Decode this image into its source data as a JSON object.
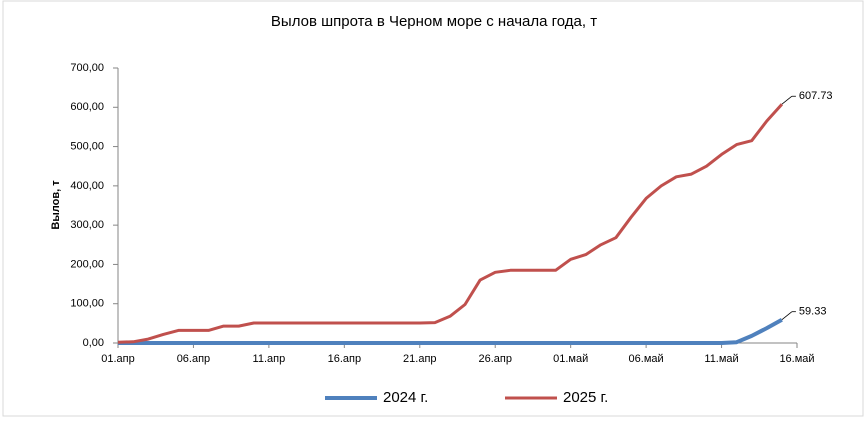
{
  "chart_data": {
    "type": "line",
    "title": "Вылов шпрота в Черном море с начала года, т",
    "y_label": "Вылов, т",
    "categories": [
      "01.апр",
      null,
      null,
      null,
      null,
      "06.апр",
      null,
      null,
      null,
      null,
      "11.апр",
      null,
      null,
      null,
      null,
      "16.апр",
      null,
      null,
      null,
      null,
      "21.апр",
      null,
      null,
      null,
      null,
      "26.апр",
      null,
      null,
      null,
      null,
      "01.май",
      null,
      null,
      null,
      null,
      "06.май",
      null,
      null,
      null,
      null,
      "11.май",
      null,
      null,
      null,
      null,
      "16.май"
    ],
    "series": [
      {
        "name": "2024 г.",
        "color": "#4f81bd",
        "width": 4,
        "values": [
          0,
          0,
          0,
          0,
          0,
          0,
          0,
          0,
          0,
          0,
          0,
          0,
          0,
          0,
          0,
          0,
          0,
          0,
          0,
          0,
          0,
          0,
          0,
          0,
          0,
          0,
          0,
          0,
          0,
          0,
          0,
          0,
          0,
          0,
          0,
          0,
          0,
          0,
          0,
          0,
          0,
          2,
          18,
          38,
          59.33,
          null
        ],
        "value_labels": [
          null,
          null,
          null,
          null,
          null,
          null,
          null,
          null,
          null,
          null,
          null,
          null,
          null,
          null,
          null,
          null,
          null,
          null,
          null,
          null,
          null,
          null,
          null,
          null,
          null,
          null,
          null,
          null,
          null,
          null,
          null,
          null,
          null,
          null,
          null,
          null,
          null,
          null,
          null,
          null,
          null,
          null,
          null,
          null,
          "59.33",
          null
        ]
      },
      {
        "name": "2025 г.",
        "color": "#c0504d",
        "width": 3,
        "values": [
          2,
          3,
          10,
          22,
          32,
          32,
          32,
          43,
          43,
          51,
          51,
          51,
          51,
          51,
          51,
          51,
          51,
          51,
          51,
          51,
          51,
          52,
          68,
          98,
          160,
          180,
          185,
          185,
          185,
          185,
          213,
          225,
          250,
          268,
          320,
          368,
          400,
          423,
          430,
          450,
          480,
          505,
          515,
          565,
          607.73,
          null
        ],
        "value_labels": [
          null,
          null,
          null,
          null,
          null,
          null,
          null,
          null,
          null,
          null,
          null,
          null,
          null,
          null,
          null,
          null,
          null,
          null,
          null,
          null,
          null,
          null,
          null,
          null,
          null,
          null,
          null,
          null,
          null,
          null,
          null,
          null,
          null,
          null,
          null,
          null,
          null,
          null,
          null,
          null,
          null,
          null,
          null,
          null,
          "607.73",
          null
        ]
      }
    ],
    "ylim": [
      0,
      700
    ],
    "yticks": [
      {
        "value": 0,
        "label": "0,00"
      },
      {
        "value": 100,
        "label": "100,00"
      },
      {
        "value": 200,
        "label": "200,00"
      },
      {
        "value": 300,
        "label": "300,00"
      },
      {
        "value": 400,
        "label": "400,00"
      },
      {
        "value": 500,
        "label": "500,00"
      },
      {
        "value": 600,
        "label": "600,00"
      },
      {
        "value": 700,
        "label": "700,00"
      }
    ],
    "grid": false,
    "legend": "bottom"
  }
}
